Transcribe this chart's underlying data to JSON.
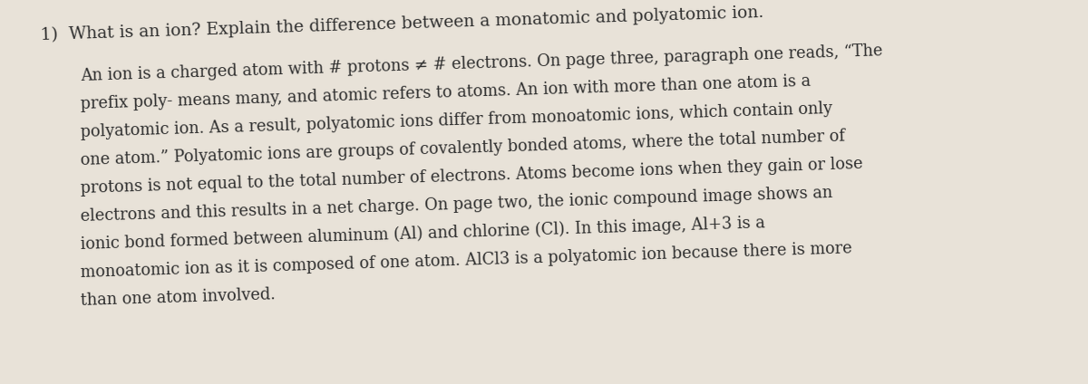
{
  "background_color": "#e8e2d8",
  "text_color": "#2e2e2e",
  "question": "1)  What is an ion? Explain the difference between a monatomic and polyatomic ion.",
  "line1": "An ion is a charged atom with # protons ≠ # electrons. On page three, paragraph one reads, “The",
  "line2": "prefix poly- means many, and atomic refers to atoms. An ion with more than one atom is a",
  "line3": "polyatomic ion. As a result, polyatomic ions differ from monoatomic ions, which contain only",
  "line4": "one atom.” Polyatomic ions are groups of covalently bonded atoms, where the total number of",
  "line5": "protons is not equal to the total number of electrons. Atoms become ions when they gain or lose",
  "line6": "electrons and this results in a net charge. On page two, the ionic compound image shows an",
  "line7": "ionic bond formed between aluminum (Al) and chlorine (Cl). In this image, Al+3 is a",
  "line8": "monoatomic ion as it is composed of one atom. AlCl3 is a polyatomic ion because there is more",
  "line9": "than one atom involved.",
  "question_fontsize": 13.5,
  "paragraph_fontsize": 12.8,
  "fig_width": 12.0,
  "fig_height": 4.24,
  "dpi": 100
}
